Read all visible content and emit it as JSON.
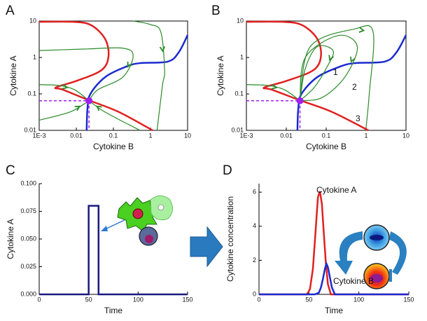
{
  "chart_data": [
    {
      "type": "phase",
      "panel": "A",
      "frame": "box",
      "xscale": "log",
      "yscale": "log",
      "x_label": "Cytokine B",
      "y_label": "Cytokine A",
      "xlim": [
        0.001,
        10
      ],
      "ylim": [
        0.01,
        10
      ],
      "xticks": [
        {
          "value": 0.001,
          "label": "1E-3"
        },
        0.01,
        0.1,
        1,
        10
      ],
      "yticks": [
        0.01,
        0.1,
        1,
        10
      ],
      "point": {
        "x": 0.022,
        "y": 0.065,
        "color": "#a020f0"
      },
      "series": [
        {
          "color": "#e02020",
          "x": [
            0.001,
            0.0083,
            0.025,
            0.059,
            0.074,
            0.048,
            0.0104,
            0.0028,
            0.0044,
            0.021,
            0.14,
            1.14
          ],
          "y": [
            9.5,
            9.5,
            7.7,
            3.3,
            1.1,
            0.45,
            0.23,
            0.15,
            0.13,
            0.068,
            0.032,
            0.01
          ]
        },
        {
          "color": "#1a2ad0",
          "x": [
            0.019,
            0.02,
            0.024,
            0.06,
            0.22,
            0.52,
            2.9,
            5.7,
            10
          ],
          "y": [
            0.01,
            0.04,
            0.1,
            0.29,
            0.56,
            0.7,
            0.77,
            1.36,
            4.1
          ]
        },
        {
          "color": "#2a8a2a",
          "arrows": true,
          "x": [
            0.34,
            1.0,
            1.9,
            2.4,
            2.1,
            1.5
          ],
          "y": [
            10,
            8,
            5,
            0.45,
            0.17,
            0.01
          ]
        },
        {
          "color": "#2a8a2a",
          "arrows": true,
          "x": [
            0.001,
            0.016,
            0.18,
            0.34,
            0.18,
            0.038,
            0.022
          ],
          "y": [
            1.55,
            1.7,
            1.8,
            1.1,
            0.29,
            0.13,
            0.065
          ]
        },
        {
          "color": "#2a8a2a",
          "arrows": true,
          "x": [
            0.001,
            0.0035,
            0.009,
            0.022
          ],
          "y": [
            0.18,
            0.17,
            0.13,
            0.065
          ]
        },
        {
          "color": "#2a8a2a",
          "arrows": true,
          "x": [
            0.001,
            0.0068,
            0.022
          ],
          "y": [
            0.019,
            0.032,
            0.065
          ]
        },
        {
          "color": "#2a8a2a",
          "arrows": true,
          "x": [
            0.52,
            0.059,
            0.022
          ],
          "y": [
            0.01,
            0.032,
            0.065
          ]
        }
      ]
    },
    {
      "type": "phase",
      "panel": "B",
      "frame": "box",
      "xscale": "log",
      "yscale": "log",
      "x_label": "Cytokine B",
      "y_label": "Cytokine A",
      "xlim": [
        0.001,
        10
      ],
      "ylim": [
        0.01,
        10
      ],
      "xticks": [
        {
          "value": 0.001,
          "label": "1E-3"
        },
        0.01,
        0.1,
        1,
        10
      ],
      "yticks": [
        0.01,
        0.1,
        1,
        10
      ],
      "point": {
        "x": 0.022,
        "y": 0.065,
        "color": "#a020f0"
      },
      "annotations": [
        "1",
        "2",
        "3"
      ],
      "series": [
        {
          "color": "#e02020",
          "x": [
            0.001,
            0.0083,
            0.025,
            0.059,
            0.074,
            0.048,
            0.0104,
            0.0028,
            0.0044,
            0.021,
            0.14,
            1.14
          ],
          "y": [
            9.5,
            9.5,
            7.7,
            3.3,
            1.1,
            0.45,
            0.23,
            0.15,
            0.13,
            0.068,
            0.032,
            0.01
          ]
        },
        {
          "color": "#1a2ad0",
          "x": [
            0.019,
            0.02,
            0.024,
            0.06,
            0.22,
            0.52,
            2.9,
            5.7,
            10
          ],
          "y": [
            0.01,
            0.04,
            0.1,
            0.29,
            0.56,
            0.7,
            0.77,
            1.36,
            4.1
          ]
        },
        {
          "color": "#2a8a2a",
          "arrows": true,
          "x": [
            0.022,
            0.03,
            0.06,
            0.15,
            0.1,
            0.05,
            0.022
          ],
          "y": [
            0.065,
            0.5,
            2,
            1.5,
            0.5,
            0.15,
            0.065
          ]
        },
        {
          "color": "#2a8a2a",
          "arrows": true,
          "x": [
            0.022,
            0.03,
            0.2,
            0.6,
            0.3,
            0.08,
            0.022
          ],
          "y": [
            0.065,
            1,
            4,
            2,
            0.3,
            0.08,
            0.065
          ]
        },
        {
          "color": "#2a8a2a",
          "arrows": true,
          "x": [
            0.022,
            0.04,
            0.5,
            1.5,
            1.2,
            1.0
          ],
          "y": [
            0.065,
            2,
            6,
            5,
            0.1,
            0.012
          ]
        },
        {
          "color": "#2a8a2a",
          "arrows": true,
          "x": [
            0.001,
            0.0035,
            0.009,
            0.022
          ],
          "y": [
            0.18,
            0.17,
            0.13,
            0.065
          ]
        }
      ]
    },
    {
      "type": "line",
      "panel": "C",
      "frame": "open",
      "x_label": "Time",
      "y_label": "Cytokine A",
      "xlim": [
        0,
        150
      ],
      "ylim": [
        0,
        0.1
      ],
      "xticks": [
        0,
        50,
        100,
        150
      ],
      "yticks": [
        {
          "value": 0,
          "label": "0.000"
        },
        {
          "value": 0.025,
          "label": "0.025"
        },
        {
          "value": 0.05,
          "label": "0.050"
        },
        {
          "value": 0.075,
          "label": "0.075"
        },
        {
          "value": 0.1,
          "label": "0.100"
        }
      ],
      "series": [
        {
          "color": "#1a1a80",
          "x": [
            0,
            50,
            50,
            60,
            60,
            150
          ],
          "y": [
            0,
            0,
            0.08,
            0.08,
            0,
            0
          ]
        }
      ]
    },
    {
      "type": "line",
      "panel": "D",
      "frame": "open",
      "x_label": "Time",
      "y_label": "Cytokine concentration",
      "xlim": [
        0,
        150
      ],
      "ylim": [
        0,
        6.5
      ],
      "xticks": [
        0,
        50,
        100,
        150
      ],
      "yticks": [
        0,
        2,
        4,
        6
      ],
      "series": [
        {
          "name": "Cytokine A",
          "color": "#e02020",
          "x": [
            0,
            48,
            51,
            54,
            57,
            59,
            61,
            63,
            65,
            67,
            69,
            72,
            150
          ],
          "y": [
            0,
            0,
            0.3,
            1.5,
            4,
            5.7,
            6.05,
            5.3,
            3.5,
            1.8,
            0.6,
            0,
            0
          ]
        },
        {
          "name": "Cytokine B",
          "color": "#1a2ad0",
          "x": [
            0,
            56,
            60,
            62,
            64,
            66,
            67.5,
            69,
            71,
            73,
            76,
            150
          ],
          "y": [
            0,
            0,
            0.1,
            0.4,
            0.9,
            1.5,
            1.8,
            1.6,
            1.0,
            0.4,
            0,
            0
          ]
        }
      ]
    }
  ]
}
